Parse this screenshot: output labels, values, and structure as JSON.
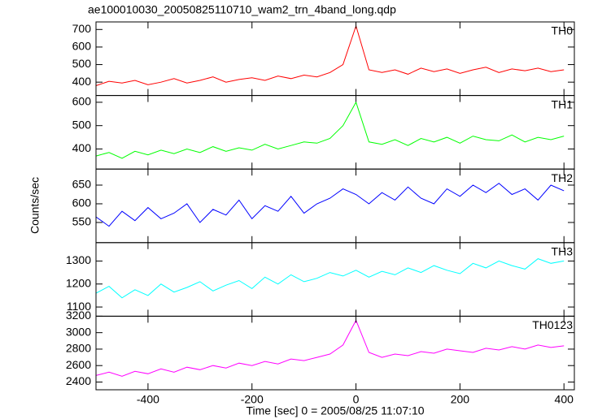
{
  "chart_data": [
    {
      "type": "line",
      "title": "ae100010030_20050825110710_wam2_trn_4band_long.qdp",
      "label": "TH0",
      "color": "#ff0000",
      "x": [
        -500,
        -475,
        -450,
        -425,
        -400,
        -375,
        -350,
        -325,
        -300,
        -275,
        -250,
        -225,
        -200,
        -175,
        -150,
        -125,
        -100,
        -75,
        -50,
        -25,
        0,
        25,
        50,
        75,
        100,
        125,
        150,
        175,
        200,
        225,
        250,
        275,
        300,
        325,
        350,
        375,
        400
      ],
      "values": [
        380,
        405,
        395,
        410,
        385,
        400,
        420,
        395,
        410,
        430,
        400,
        415,
        425,
        410,
        435,
        420,
        440,
        430,
        455,
        500,
        720,
        470,
        455,
        470,
        445,
        480,
        460,
        475,
        450,
        470,
        485,
        455,
        475,
        465,
        480,
        460,
        470
      ],
      "xlim": [
        -500,
        420
      ],
      "ylim": [
        324,
        743
      ],
      "yticks": [
        400,
        500,
        600,
        700
      ]
    },
    {
      "type": "line",
      "label": "TH1",
      "color": "#00ff00",
      "x": [
        -500,
        -475,
        -450,
        -425,
        -400,
        -375,
        -350,
        -325,
        -300,
        -275,
        -250,
        -225,
        -200,
        -175,
        -150,
        -125,
        -100,
        -75,
        -50,
        -25,
        0,
        25,
        50,
        75,
        100,
        125,
        150,
        175,
        200,
        225,
        250,
        275,
        300,
        325,
        350,
        375,
        400
      ],
      "values": [
        370,
        385,
        360,
        390,
        375,
        395,
        380,
        400,
        385,
        410,
        390,
        405,
        395,
        420,
        400,
        415,
        430,
        425,
        445,
        500,
        600,
        430,
        420,
        440,
        415,
        445,
        430,
        450,
        425,
        455,
        440,
        435,
        460,
        430,
        450,
        440,
        455
      ],
      "xlim": [
        -500,
        420
      ],
      "ylim": [
        314,
        629
      ],
      "yticks": [
        400,
        500,
        600
      ]
    },
    {
      "type": "line",
      "label": "TH2",
      "color": "#0000ff",
      "ylabel": "Counts/sec",
      "x": [
        -500,
        -475,
        -450,
        -425,
        -400,
        -375,
        -350,
        -325,
        -300,
        -275,
        -250,
        -225,
        -200,
        -175,
        -150,
        -125,
        -100,
        -75,
        -50,
        -25,
        0,
        25,
        50,
        75,
        100,
        125,
        150,
        175,
        200,
        225,
        250,
        275,
        300,
        325,
        350,
        375,
        400
      ],
      "values": [
        565,
        540,
        580,
        555,
        590,
        560,
        575,
        600,
        550,
        585,
        570,
        610,
        560,
        595,
        580,
        620,
        575,
        600,
        615,
        640,
        625,
        600,
        630,
        610,
        645,
        615,
        600,
        640,
        620,
        650,
        630,
        655,
        625,
        640,
        610,
        650,
        635
      ],
      "xlim": [
        -500,
        420
      ],
      "ylim": [
        496,
        693
      ],
      "yticks": [
        550,
        600,
        650
      ]
    },
    {
      "type": "line",
      "label": "TH3",
      "color": "#00ffff",
      "x": [
        -500,
        -475,
        -450,
        -425,
        -400,
        -375,
        -350,
        -325,
        -300,
        -275,
        -250,
        -225,
        -200,
        -175,
        -150,
        -125,
        -100,
        -75,
        -50,
        -25,
        0,
        25,
        50,
        75,
        100,
        125,
        150,
        175,
        200,
        225,
        250,
        275,
        300,
        325,
        350,
        375,
        400
      ],
      "values": [
        1160,
        1190,
        1140,
        1175,
        1150,
        1200,
        1165,
        1185,
        1210,
        1170,
        1195,
        1215,
        1180,
        1230,
        1200,
        1240,
        1210,
        1225,
        1250,
        1235,
        1260,
        1230,
        1255,
        1240,
        1270,
        1250,
        1280,
        1260,
        1245,
        1290,
        1270,
        1300,
        1280,
        1265,
        1310,
        1290,
        1300
      ],
      "xlim": [
        -500,
        420
      ],
      "ylim": [
        1060,
        1380
      ],
      "yticks": [
        1100,
        1200,
        1300
      ]
    },
    {
      "type": "line",
      "label": "TH0123",
      "color": "#ff00ff",
      "xlabel": "Time [sec] 0 = 2005/08/25 11:07:10",
      "x": [
        -500,
        -475,
        -450,
        -425,
        -400,
        -375,
        -350,
        -325,
        -300,
        -275,
        -250,
        -225,
        -200,
        -175,
        -150,
        -125,
        -100,
        -75,
        -50,
        -25,
        0,
        25,
        50,
        75,
        100,
        125,
        150,
        175,
        200,
        225,
        250,
        275,
        300,
        325,
        350,
        375,
        400
      ],
      "values": [
        2480,
        2520,
        2470,
        2530,
        2500,
        2560,
        2520,
        2580,
        2550,
        2600,
        2570,
        2630,
        2600,
        2650,
        2620,
        2680,
        2660,
        2700,
        2740,
        2850,
        3150,
        2760,
        2700,
        2740,
        2720,
        2770,
        2750,
        2800,
        2780,
        2760,
        2810,
        2790,
        2830,
        2800,
        2850,
        2820,
        2840
      ],
      "xlim": [
        -500,
        420
      ],
      "ylim": [
        2306,
        3200
      ],
      "yticks": [
        2400,
        2600,
        2800,
        3000,
        3200
      ],
      "xticks": [
        -400,
        -200,
        0,
        200,
        400
      ]
    }
  ]
}
